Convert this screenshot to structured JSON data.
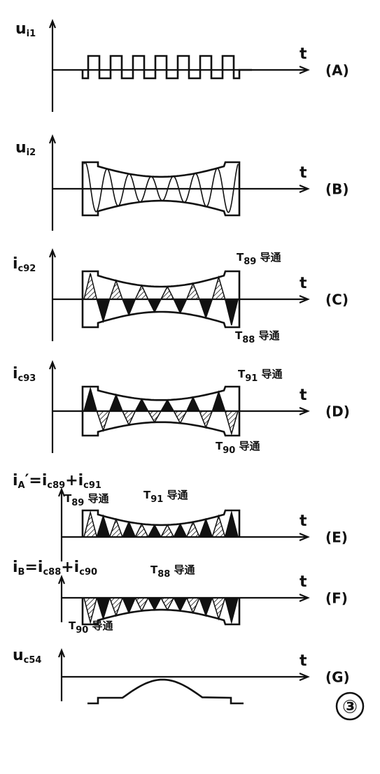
{
  "panels": [
    {
      "id": "(A)",
      "t": "t",
      "axis_label": [
        {
          "main": "u"
        },
        {
          "sub": "i1"
        }
      ],
      "annotations": []
    },
    {
      "id": "(B)",
      "t": "t",
      "axis_label": [
        {
          "main": "u"
        },
        {
          "sub": "i2"
        }
      ],
      "annotations": []
    },
    {
      "id": "(C)",
      "t": "t",
      "axis_label": [
        {
          "main": "i"
        },
        {
          "sub": "c92"
        }
      ],
      "annotations": [
        [
          {
            "main": "T"
          },
          {
            "sub": "89"
          },
          {
            "main": " 导通"
          }
        ],
        [
          {
            "main": "T"
          },
          {
            "sub": "88"
          },
          {
            "main": " 导通"
          }
        ]
      ]
    },
    {
      "id": "(D)",
      "t": "t",
      "axis_label": [
        {
          "main": "i"
        },
        {
          "sub": "c93"
        }
      ],
      "annotations": [
        [
          {
            "main": "T"
          },
          {
            "sub": "91"
          },
          {
            "main": " 导通"
          }
        ],
        [
          {
            "main": "T"
          },
          {
            "sub": "90"
          },
          {
            "main": " 导通"
          }
        ]
      ]
    },
    {
      "id": "(E)",
      "t": "t",
      "axis_label": [
        {
          "main": "i"
        },
        {
          "sub": "A"
        },
        {
          "main": "′=i"
        },
        {
          "sub": "c89"
        },
        {
          "main": "+i"
        },
        {
          "sub": "c91"
        }
      ],
      "annotations": [
        [
          {
            "main": "T"
          },
          {
            "sub": "89"
          },
          {
            "main": " 导通"
          }
        ],
        [
          {
            "main": "T"
          },
          {
            "sub": "91"
          },
          {
            "main": " 导通"
          }
        ]
      ]
    },
    {
      "id": "(F)",
      "t": "t",
      "axis_label": [
        {
          "main": "i"
        },
        {
          "sub": "B"
        },
        {
          "main": "=i"
        },
        {
          "sub": "c88"
        },
        {
          "main": "+i"
        },
        {
          "sub": "c90"
        }
      ],
      "annotations": [
        [
          {
            "main": "T"
          },
          {
            "sub": "88"
          },
          {
            "main": " 导通"
          }
        ],
        [
          {
            "main": "T"
          },
          {
            "sub": "90"
          },
          {
            "main": " 导通"
          }
        ]
      ]
    },
    {
      "id": "(G)",
      "t": "t",
      "axis_label": [
        {
          "main": "u"
        },
        {
          "sub": "c54"
        }
      ],
      "annotations": []
    }
  ],
  "figure_number": "③"
}
